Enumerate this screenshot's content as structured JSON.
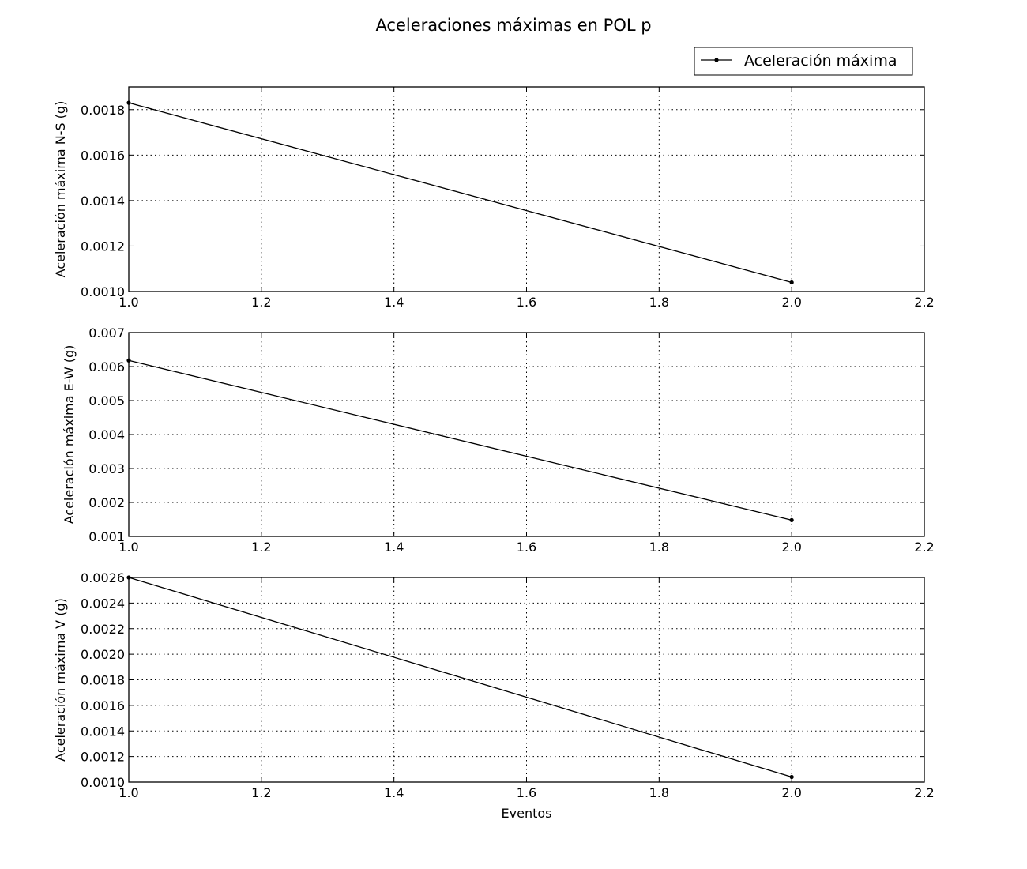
{
  "figure": {
    "title": "Aceleraciones máximas en POL p",
    "legend": {
      "label": "Aceleración máxima",
      "placement": "top-right"
    }
  },
  "chart_data": [
    {
      "type": "line",
      "title": "",
      "xlabel": "",
      "ylabel": "Aceleración máxima N-S (g)",
      "x": [
        1.0,
        2.0
      ],
      "series": [
        {
          "name": "Aceleración máxima",
          "values": [
            0.00183,
            0.00104
          ]
        }
      ],
      "xlim": [
        1.0,
        2.2
      ],
      "ylim": [
        0.001,
        0.0019
      ],
      "xticks": [
        "1.0",
        "1.2",
        "1.4",
        "1.6",
        "1.8",
        "2.0",
        "2.2"
      ],
      "yticks": [
        "0.0010",
        "0.0012",
        "0.0014",
        "0.0016",
        "0.0018"
      ],
      "grid": true,
      "marker": "point",
      "color": "#000000"
    },
    {
      "type": "line",
      "title": "",
      "xlabel": "",
      "ylabel": "Aceleración máxima E-W (g)",
      "x": [
        1.0,
        2.0
      ],
      "series": [
        {
          "name": "Aceleración máxima",
          "values": [
            0.00618,
            0.00148
          ]
        }
      ],
      "xlim": [
        1.0,
        2.2
      ],
      "ylim": [
        0.001,
        0.007
      ],
      "xticks": [
        "1.0",
        "1.2",
        "1.4",
        "1.6",
        "1.8",
        "2.0",
        "2.2"
      ],
      "yticks": [
        "0.001",
        "0.002",
        "0.003",
        "0.004",
        "0.005",
        "0.006",
        "0.007"
      ],
      "grid": true,
      "marker": "point",
      "color": "#000000"
    },
    {
      "type": "line",
      "title": "",
      "xlabel": "Eventos",
      "ylabel": "Aceleración máxima V (g)",
      "x": [
        1.0,
        2.0
      ],
      "series": [
        {
          "name": "Aceleración máxima",
          "values": [
            0.0026,
            0.00104
          ]
        }
      ],
      "xlim": [
        1.0,
        2.2
      ],
      "ylim": [
        0.001,
        0.0026
      ],
      "xticks": [
        "1.0",
        "1.2",
        "1.4",
        "1.6",
        "1.8",
        "2.0",
        "2.2"
      ],
      "yticks": [
        "0.0010",
        "0.0012",
        "0.0014",
        "0.0016",
        "0.0018",
        "0.0020",
        "0.0022",
        "0.0024",
        "0.0026"
      ],
      "grid": true,
      "marker": "point",
      "color": "#000000"
    }
  ]
}
